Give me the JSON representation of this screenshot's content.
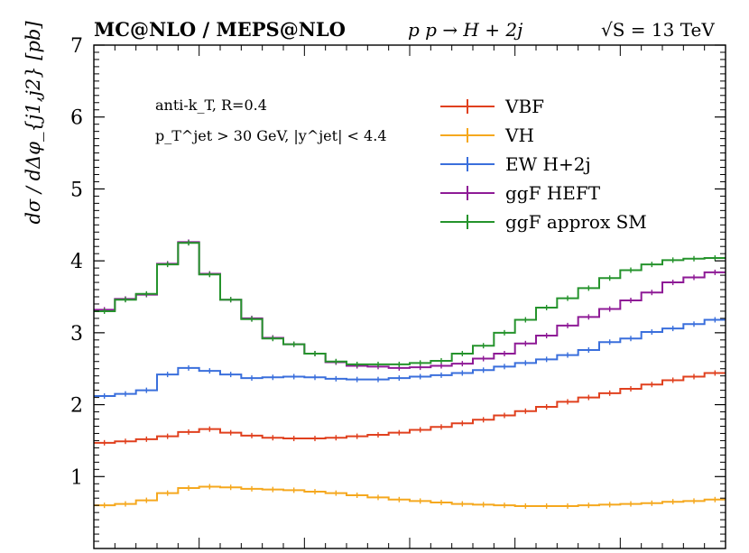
{
  "header": {
    "generator": "MC@NLO / MEPS@NLO",
    "process": "p p → H + 2j",
    "energy": "√S = 13 TeV"
  },
  "annotations": {
    "line1": "anti-k_T, R=0.4",
    "line2": "p_T^jet > 30 GeV, |y^jet| < 4.4"
  },
  "chart_data": {
    "type": "line",
    "title": "",
    "xlabel": "",
    "ylabel": "dσ / dΔφ_{j1,j2} [pb]",
    "ylim": [
      0,
      7
    ],
    "yticks": [
      1,
      2,
      3,
      4,
      5,
      6,
      7
    ],
    "bins": 30,
    "grid": false,
    "legend_position": "top-right",
    "series": [
      {
        "name": "VBF",
        "color": "#e0401e",
        "values": [
          1.47,
          1.49,
          1.52,
          1.56,
          1.62,
          1.66,
          1.61,
          1.57,
          1.54,
          1.53,
          1.53,
          1.54,
          1.56,
          1.58,
          1.61,
          1.65,
          1.69,
          1.74,
          1.79,
          1.85,
          1.91,
          1.97,
          2.04,
          2.1,
          2.16,
          2.22,
          2.28,
          2.34,
          2.39,
          2.44,
          2.45
        ]
      },
      {
        "name": "VH",
        "color": "#f5a81e",
        "values": [
          0.6,
          0.62,
          0.67,
          0.77,
          0.84,
          0.86,
          0.85,
          0.83,
          0.82,
          0.81,
          0.79,
          0.77,
          0.74,
          0.71,
          0.68,
          0.66,
          0.64,
          0.62,
          0.61,
          0.6,
          0.59,
          0.59,
          0.59,
          0.6,
          0.61,
          0.62,
          0.63,
          0.65,
          0.66,
          0.68,
          0.69
        ]
      },
      {
        "name": "EW H+2j",
        "color": "#3a6fdc",
        "values": [
          2.12,
          2.15,
          2.2,
          2.42,
          2.51,
          2.47,
          2.42,
          2.37,
          2.38,
          2.39,
          2.38,
          2.36,
          2.35,
          2.35,
          2.37,
          2.39,
          2.41,
          2.44,
          2.48,
          2.53,
          2.58,
          2.63,
          2.69,
          2.76,
          2.87,
          2.92,
          3.01,
          3.06,
          3.12,
          3.18,
          3.2
        ]
      },
      {
        "name": "ggF HEFT",
        "color": "#8e1a96",
        "values": [
          3.32,
          3.47,
          3.53,
          3.96,
          4.26,
          3.82,
          3.46,
          3.2,
          2.93,
          2.84,
          2.71,
          2.59,
          2.54,
          2.53,
          2.51,
          2.52,
          2.54,
          2.57,
          2.64,
          2.71,
          2.85,
          2.96,
          3.1,
          3.22,
          3.33,
          3.45,
          3.56,
          3.7,
          3.77,
          3.84,
          3.85
        ]
      },
      {
        "name": "ggF approx SM",
        "color": "#25932c",
        "values": [
          3.3,
          3.46,
          3.54,
          3.95,
          4.25,
          3.81,
          3.46,
          3.19,
          2.92,
          2.84,
          2.71,
          2.6,
          2.56,
          2.56,
          2.56,
          2.58,
          2.61,
          2.71,
          2.82,
          3.0,
          3.18,
          3.35,
          3.48,
          3.62,
          3.76,
          3.87,
          3.95,
          4.01,
          4.03,
          4.04,
          4.05
        ]
      }
    ]
  }
}
